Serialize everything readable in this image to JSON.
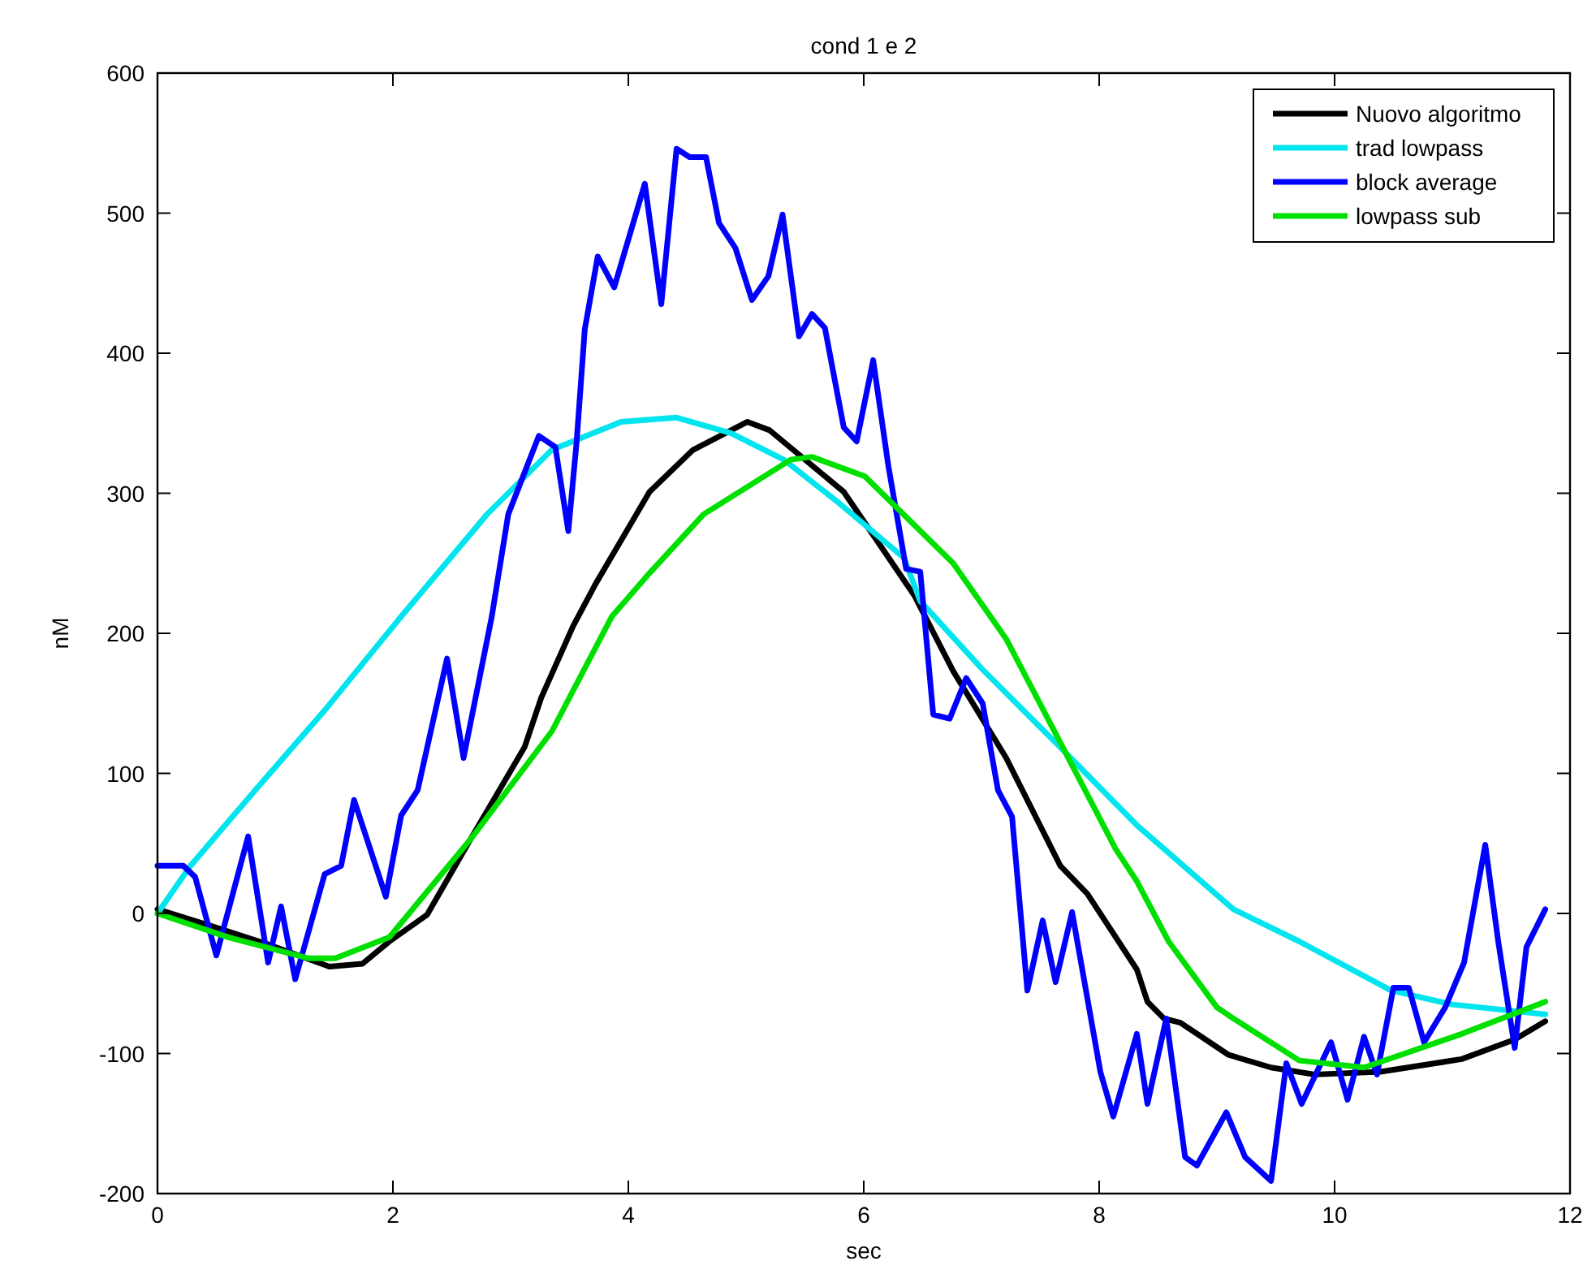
{
  "chart_data": {
    "type": "line",
    "title": "cond 1 e 2",
    "xlabel": "sec",
    "ylabel": "nM",
    "xlim": [
      0,
      12
    ],
    "xticks": [
      0,
      2,
      4,
      6,
      8,
      10,
      12
    ],
    "ylim": [
      -200,
      600
    ],
    "yticks": [
      -200,
      -100,
      0,
      100,
      200,
      300,
      400,
      500,
      600
    ],
    "grid": false,
    "legend": "top right",
    "marker": "none",
    "line_style": "solid",
    "series": [
      {
        "name": "Nuovo algoritmo",
        "color": "#000000",
        "x": [
          0,
          0.46,
          0.97,
          1.46,
          1.74,
          1.97,
          2.29,
          2.66,
          3.12,
          3.26,
          3.53,
          3.72,
          4.18,
          4.55,
          5.01,
          5.2,
          5.83,
          6.43,
          6.76,
          7.21,
          7.67,
          7.9,
          8.32,
          8.41,
          8.55,
          8.69,
          9.1,
          9.46,
          9.83,
          10.39,
          11.08,
          11.53,
          11.79
        ],
        "values": [
          3,
          -9,
          -23,
          -38,
          -36,
          -20,
          -1,
          53,
          119,
          154,
          205,
          235,
          301,
          331,
          351,
          345,
          301,
          227,
          173,
          111,
          34,
          14,
          -40,
          -63,
          -75,
          -78,
          -101,
          -110,
          -115,
          -113,
          -104,
          -90,
          -77
        ]
      },
      {
        "name": "trad lowpass",
        "color": "#00e5ee",
        "x": [
          0,
          0.28,
          0.83,
          1.42,
          2.07,
          2.8,
          3.35,
          3.94,
          4.41,
          4.87,
          5.32,
          5.79,
          6.34,
          6.48,
          7,
          7.63,
          8.32,
          9.14,
          9.7,
          10.48,
          11,
          11.79
        ],
        "values": [
          0,
          34,
          88,
          145,
          212,
          285,
          331,
          351,
          354,
          343,
          324,
          293,
          254,
          223,
          175,
          122,
          63,
          3,
          -20,
          -55,
          -65,
          -72
        ]
      },
      {
        "name": "block average",
        "color": "#0000ff",
        "x": [
          0,
          0.22,
          0.32,
          0.5,
          0.77,
          0.94,
          1.05,
          1.17,
          1.42,
          1.56,
          1.67,
          1.94,
          2.07,
          2.21,
          2.46,
          2.6,
          2.84,
          2.98,
          3.24,
          3.38,
          3.49,
          3.56,
          3.63,
          3.74,
          3.88,
          4.14,
          4.28,
          4.41,
          4.52,
          4.66,
          4.77,
          4.91,
          5.05,
          5.19,
          5.31,
          5.45,
          5.56,
          5.67,
          5.83,
          5.94,
          6.08,
          6.21,
          6.36,
          6.48,
          6.59,
          6.73,
          6.87,
          7.01,
          7.14,
          7.26,
          7.39,
          7.52,
          7.63,
          7.77,
          8.01,
          8.12,
          8.32,
          8.41,
          8.57,
          8.73,
          8.83,
          9.08,
          9.24,
          9.46,
          9.59,
          9.72,
          9.97,
          10.11,
          10.25,
          10.36,
          10.5,
          10.63,
          10.76,
          10.94,
          11.1,
          11.28,
          11.39,
          11.53,
          11.63,
          11.79
        ],
        "values": [
          34,
          34,
          26,
          -30,
          55,
          -35,
          5,
          -47,
          28,
          34,
          81,
          12,
          70,
          88,
          182,
          111,
          212,
          285,
          341,
          333,
          273,
          336,
          417,
          469,
          447,
          521,
          435,
          546,
          540,
          540,
          493,
          475,
          438,
          455,
          499,
          412,
          428,
          418,
          347,
          337,
          395,
          319,
          246,
          244,
          142,
          139,
          168,
          150,
          88,
          69,
          -55,
          -5,
          -49,
          1,
          -113,
          -145,
          -86,
          -136,
          -75,
          -174,
          -180,
          -142,
          -174,
          -191,
          -107,
          -136,
          -92,
          -133,
          -88,
          -115,
          -53,
          -53,
          -92,
          -67,
          -35,
          49,
          -20,
          -96,
          -24,
          3
        ]
      },
      {
        "name": "lowpass sub",
        "color": "#00e000",
        "x": [
          0,
          0.6,
          1.28,
          1.51,
          1.97,
          2.66,
          3.35,
          3.86,
          4.18,
          4.64,
          5.38,
          5.56,
          6.01,
          6.76,
          7.21,
          7.67,
          8.14,
          8.32,
          8.59,
          9,
          9.14,
          9.7,
          10.25,
          11.08,
          11.79
        ],
        "values": [
          0,
          -17,
          -32,
          -32,
          -17,
          53,
          130,
          212,
          243,
          285,
          324,
          326,
          312,
          250,
          196,
          122,
          46,
          23,
          -20,
          -67,
          -75,
          -105,
          -110,
          -86,
          -63
        ]
      }
    ]
  }
}
